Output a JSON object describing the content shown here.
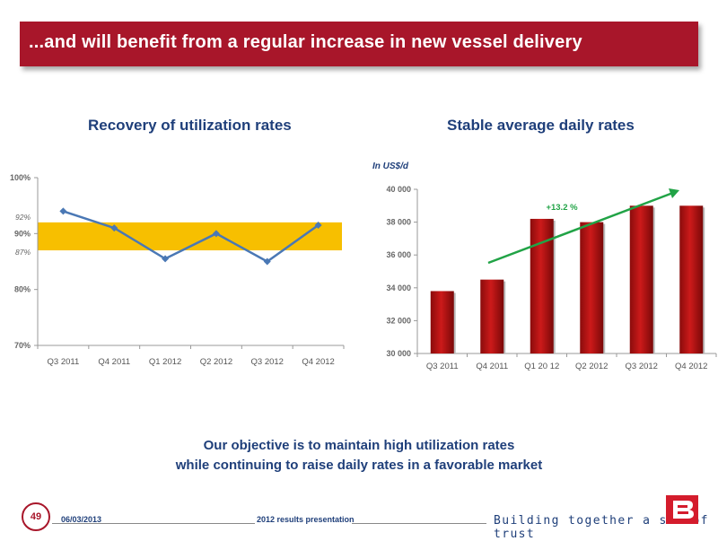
{
  "header": {
    "title": "...and will benefit from a regular increase in new vessel delivery"
  },
  "charts_titles": {
    "left": "Recovery of utilization rates",
    "right": "Stable average daily rates"
  },
  "chart_data": [
    {
      "type": "line",
      "title": "Recovery of utilization rates",
      "categories": [
        "Q3 2011",
        "Q4 2011",
        "Q1 2012",
        "Q2 2012",
        "Q3 2012",
        "Q4 2012"
      ],
      "values": [
        94,
        91,
        85.5,
        90,
        85,
        91.5
      ],
      "ylim": [
        70,
        100
      ],
      "yticks": [
        "100%",
        "90%",
        "80%",
        "70%"
      ],
      "yticks_values": [
        100,
        90,
        80,
        70
      ],
      "band": {
        "from": 87,
        "to": 92,
        "color": "#f7bf00"
      },
      "band_labels": [
        "92%",
        "87%"
      ],
      "line_color": "#4a78b5"
    },
    {
      "type": "bar",
      "title": "Stable average daily rates",
      "unit_label": "In US$/d",
      "categories": [
        "Q3 2011",
        "Q4 2011",
        "Q1 20 12",
        "Q2 2012",
        "Q3 2012",
        "Q4 2012"
      ],
      "values": [
        33800,
        34500,
        38200,
        38000,
        39000,
        39000
      ],
      "ylim": [
        30000,
        40000
      ],
      "yticks": [
        "40 000",
        "38 000",
        "36 000",
        "34 000",
        "32 000",
        "30 000"
      ],
      "yticks_values": [
        40000,
        38000,
        36000,
        34000,
        32000,
        30000
      ],
      "bar_color": "#cc1a1a",
      "trend_label": "+13.2 %",
      "trend_color": "#21a346"
    }
  ],
  "objective": {
    "line1": "Our objective is to maintain high utilization rates",
    "line2": "while continuing to raise daily rates in a favorable market"
  },
  "footer": {
    "page_number": "49",
    "date": "06/03/2013",
    "center": "2012 results presentation",
    "tagline": "Building together a sea of trust"
  }
}
